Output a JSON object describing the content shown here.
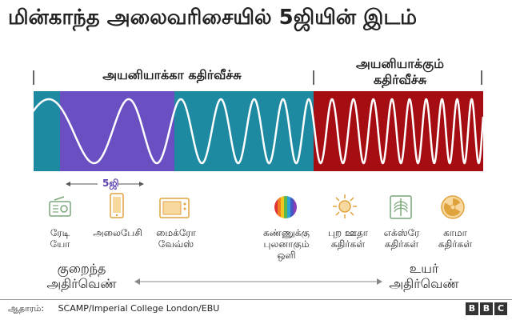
{
  "title": "மின்காந்த அலைவரிசையில் 5ஜியின் இடம்",
  "categories": {
    "non_ionizing": "அயனியாக்கா கதிர்வீச்சு",
    "ionizing_line1": "அயனியாக்கும்",
    "ionizing_line2": "கதிர்வீச்சு"
  },
  "fiveg_label": "5ஜி",
  "colors": {
    "teal": "#1d8aa2",
    "purple": "#6a4fc3",
    "dark_red": "#a50d12",
    "wave": "#ffffff",
    "icon_green": "#7aa67a",
    "icon_orange": "#e0a23c"
  },
  "spectrum_items": [
    {
      "icon": "radio-icon",
      "line1": "ரேடி",
      "line2": "யோ"
    },
    {
      "icon": "mobile-phone-icon",
      "line1": "அலைபேசி",
      "line2": ""
    },
    {
      "icon": "microwave-icon",
      "line1": "மைக்ரோ",
      "line2": "வேவ்ஸ்"
    },
    {
      "icon": "visible-light-icon",
      "line1": "கண்ணுக்கு",
      "line2": "புலனாகும்",
      "line3": "ஒளி"
    },
    {
      "icon": "sun-icon",
      "line1": "புற ஊதா",
      "line2": "கதிர்கள்"
    },
    {
      "icon": "xray-icon",
      "line1": "எக்ஸ்ரே",
      "line2": "கதிர்கள்"
    },
    {
      "icon": "radiation-icon",
      "line1": "காமா",
      "line2": "கதிர்கள்"
    }
  ],
  "frequency": {
    "low_line1": "குறைந்த",
    "low_line2": "அதிர்வெண்",
    "high_line1": "உயர்",
    "high_line2": "அதிர்வெண்"
  },
  "source": {
    "label": "ஆதாரம்:",
    "value": "SCAMP/Imperial College London/EBU"
  },
  "logo": [
    "B",
    "B",
    "C"
  ]
}
